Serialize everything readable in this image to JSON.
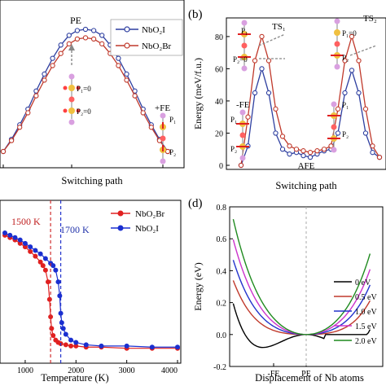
{
  "chart_data": [
    {
      "id": "a",
      "type": "line",
      "panel_label": "",
      "xlabel": "Switching path",
      "ylabel": "",
      "legend": {
        "placement": "top-right",
        "entries": [
          "NbO₂I",
          "NbO₂Br"
        ]
      },
      "annotations": {
        "pe": "PE",
        "p1_top": "P₁=0",
        "p2_top": "P₂=0",
        "fe": "+FE",
        "p1": "P₁",
        "p2": "P₂"
      },
      "series": [
        {
          "name": "NbO₂I",
          "color": "#2e3fa0",
          "x": [
            0,
            0.05,
            0.1,
            0.15,
            0.2,
            0.25,
            0.3,
            0.35,
            0.4,
            0.45,
            0.5,
            0.55,
            0.6,
            0.65,
            0.7,
            0.75,
            0.8,
            0.85,
            0.9,
            0.95,
            1.0
          ],
          "y": [
            0,
            10,
            22,
            35,
            50,
            64,
            77,
            88,
            96,
            100,
            101,
            100,
            96,
            88,
            77,
            64,
            50,
            35,
            22,
            10,
            0
          ]
        },
        {
          "name": "NbO₂Br",
          "color": "#c0392b",
          "x": [
            0,
            0.05,
            0.1,
            0.15,
            0.2,
            0.25,
            0.3,
            0.35,
            0.4,
            0.45,
            0.5,
            0.55,
            0.6,
            0.65,
            0.7,
            0.75,
            0.8,
            0.85,
            0.9,
            0.95,
            1.0
          ],
          "y": [
            0,
            9,
            20,
            32,
            46,
            59,
            71,
            81,
            89,
            93,
            94,
            93,
            89,
            81,
            71,
            59,
            46,
            32,
            20,
            9,
            0
          ]
        }
      ]
    },
    {
      "id": "b",
      "type": "line",
      "panel_label": "(b)",
      "xlabel": "Switching path",
      "ylabel": "Energy (meV/f.u.)",
      "ylim": [
        0,
        90
      ],
      "yticks": [
        "0",
        "20",
        "40",
        "60",
        "80"
      ],
      "annotations": {
        "ts1": "TS₁",
        "ts2": "TS₂",
        "p1_eq": "P₁=0",
        "p2_eq": "P₂=0",
        "p1_eq2": "P₁=0",
        "p1": "P₁",
        "p2": "P₂",
        "fe": "-FE",
        "afe": "AFE",
        "p1b": "P₁",
        "p2b": "P₂"
      },
      "series": [
        {
          "name": "NbO₂I",
          "color": "#2e3fa0",
          "x": [
            0,
            0.05,
            0.1,
            0.15,
            0.2,
            0.25,
            0.3,
            0.35,
            0.4,
            0.45,
            0.5,
            0.55,
            0.6,
            0.65,
            0.7,
            0.75,
            0.8,
            0.85,
            0.9,
            0.95,
            1.0
          ],
          "y": [
            0,
            12,
            45,
            60,
            45,
            20,
            10,
            7,
            8,
            6,
            5,
            7,
            9,
            10,
            20,
            45,
            59,
            45,
            20,
            8,
            5
          ]
        },
        {
          "name": "NbO₂Br",
          "color": "#c0392b",
          "x": [
            0,
            0.05,
            0.1,
            0.15,
            0.2,
            0.25,
            0.3,
            0.35,
            0.4,
            0.45,
            0.5,
            0.55,
            0.6,
            0.65,
            0.7,
            0.75,
            0.8,
            0.85,
            0.9,
            0.95,
            1.0
          ],
          "y": [
            0,
            30,
            65,
            80,
            65,
            35,
            18,
            12,
            10,
            9,
            8,
            9,
            10,
            12,
            35,
            65,
            80,
            65,
            35,
            12,
            5
          ]
        }
      ]
    },
    {
      "id": "c",
      "type": "scatter",
      "panel_label": "",
      "xlabel": "Temperature (K)",
      "ylabel": "",
      "xlim": [
        600,
        4000
      ],
      "xticks": [
        "1000",
        "2000",
        "3000",
        "4000"
      ],
      "legend": {
        "placement": "top-right",
        "entries": [
          "NbO₂Br",
          "NbO₂I"
        ]
      },
      "annotations": {
        "t1": "1500 K",
        "t2": "1700 K"
      },
      "transitions": {
        "NbO₂Br": 1500,
        "NbO₂I": 1700
      },
      "series": [
        {
          "name": "NbO₂Br",
          "color": "#e02020",
          "x": [
            600,
            700,
            800,
            900,
            1000,
            1100,
            1200,
            1300,
            1350,
            1400,
            1450,
            1480,
            1500,
            1520,
            1550,
            1600,
            1650,
            1700,
            1800,
            1900,
            2000,
            2200,
            2500,
            3000,
            3500,
            4000
          ],
          "y": [
            1.0,
            0.98,
            0.96,
            0.93,
            0.9,
            0.86,
            0.82,
            0.77,
            0.74,
            0.7,
            0.6,
            0.45,
            0.3,
            0.2,
            0.14,
            0.1,
            0.08,
            0.07,
            0.06,
            0.05,
            0.05,
            0.04,
            0.04,
            0.03,
            0.03,
            0.03
          ]
        },
        {
          "name": "NbO₂I",
          "color": "#1a2fd0",
          "x": [
            600,
            700,
            800,
            900,
            1000,
            1100,
            1200,
            1300,
            1400,
            1500,
            1550,
            1600,
            1650,
            1680,
            1700,
            1720,
            1750,
            1800,
            1900,
            2000,
            2200,
            2500,
            3000,
            3500,
            4000
          ],
          "y": [
            1.02,
            1.0,
            0.98,
            0.96,
            0.93,
            0.9,
            0.87,
            0.84,
            0.8,
            0.76,
            0.74,
            0.7,
            0.6,
            0.48,
            0.33,
            0.25,
            0.2,
            0.15,
            0.1,
            0.08,
            0.06,
            0.05,
            0.05,
            0.04,
            0.04
          ]
        }
      ]
    },
    {
      "id": "d",
      "type": "line",
      "panel_label": "(d)",
      "xlabel": "Displacement of Nb atoms",
      "ylabel": "Energy (eV)",
      "ylim": [
        -0.2,
        0.8
      ],
      "yticks": [
        "-0.2",
        "0.0",
        "0.2",
        "0.4",
        "0.6",
        "0.8"
      ],
      "xticks": [
        "-FE",
        "PE"
      ],
      "series": [
        {
          "name": "0 eV",
          "color": "#000000",
          "a": 0.36
        },
        {
          "name": "0.5 eV",
          "color": "#c0392b",
          "a": 0.48
        },
        {
          "name": "1.0 eV",
          "color": "#2233cc",
          "a": 0.6
        },
        {
          "name": "1.5 eV",
          "color": "#cc33cc",
          "a": 0.72
        },
        {
          "name": "2.0 eV",
          "color": "#1f8a1f",
          "a": 0.84
        }
      ]
    }
  ]
}
